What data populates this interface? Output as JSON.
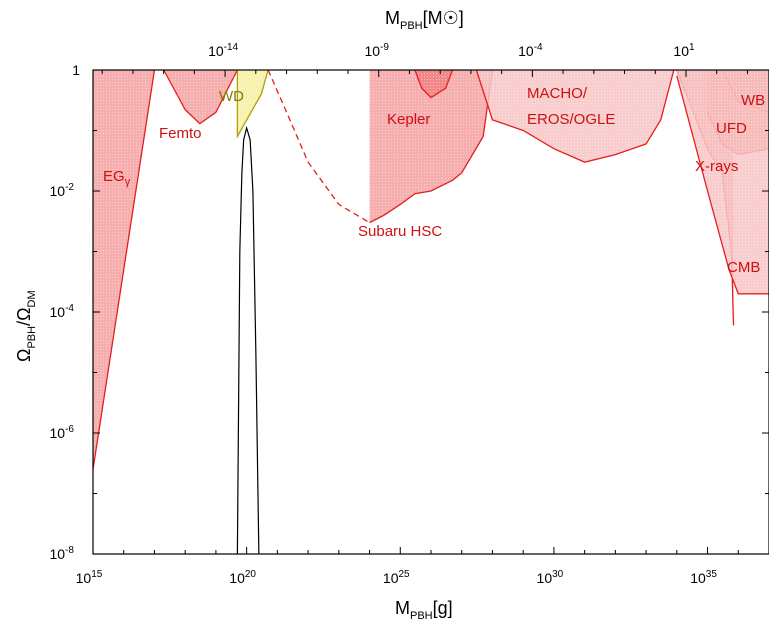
{
  "chart_data": {
    "type": "area",
    "x_axis": {
      "label": "M",
      "label_sub": "PBH",
      "label_suffix": "[g]",
      "scale": "log",
      "range": [
        1000000000000000.0,
        1e+37
      ],
      "tick_labels": [
        {
          "value": 1000000000000000.0,
          "base": "10",
          "exp": "15"
        },
        {
          "value": 1e+20,
          "base": "10",
          "exp": "20"
        },
        {
          "value": 1e+25,
          "base": "10",
          "exp": "25"
        },
        {
          "value": 1e+30,
          "base": "10",
          "exp": "30"
        },
        {
          "value": 1e+35,
          "base": "10",
          "exp": "35"
        }
      ]
    },
    "top_axis": {
      "label": "M",
      "label_sub": "PBH",
      "label_suffix": "[M",
      "label_sun": "☉",
      "label_close": "]",
      "tick_labels": [
        {
          "value": 1e-14,
          "base": "10",
          "exp": "-14"
        },
        {
          "value": 1e-09,
          "base": "10",
          "exp": "-9"
        },
        {
          "value": 0.0001,
          "base": "10",
          "exp": "-4"
        },
        {
          "value": 10,
          "base": "10",
          "exp": "1"
        }
      ]
    },
    "y_axis": {
      "label": "Ω",
      "label_sub": "PBH",
      "label_mid": "/Ω",
      "label_sub2": "DM",
      "scale": "log",
      "range": [
        1e-08,
        1
      ],
      "tick_labels": [
        {
          "value": 1,
          "text": "1",
          "base": "10",
          "exp": "0"
        },
        {
          "value": 0.01,
          "base": "10",
          "exp": "-2"
        },
        {
          "value": 0.0001,
          "base": "10",
          "exp": "-4"
        },
        {
          "value": 1e-06,
          "base": "10",
          "exp": "-6"
        },
        {
          "value": 1e-08,
          "base": "10",
          "exp": "-8"
        }
      ]
    },
    "constraints": [
      {
        "name": "EGγ",
        "label": "EG",
        "label_greek": "γ",
        "color": "#f4a0a0",
        "edge": "#e61e1e",
        "boundary": [
          [
            1000000000000000.0,
            2.5e-07
          ],
          [
            1e+17,
            1
          ]
        ]
      },
      {
        "name": "Femto",
        "label": "Femto",
        "color": "#f4a0a0",
        "edge": "#e61e1e",
        "boundary": [
          [
            2e+17,
            1
          ],
          [
            1e+18,
            0.22
          ],
          [
            3e+18,
            0.13
          ],
          [
            1e+19,
            0.2
          ],
          [
            5e+19,
            1
          ]
        ]
      },
      {
        "name": "WD",
        "label": "WD",
        "color": "#f6f0a0",
        "edge": "#b0a000",
        "boundary": [
          [
            5e+19,
            1
          ],
          [
            5e+19,
            0.08
          ],
          [
            3e+20,
            0.4
          ],
          [
            5e+20,
            1
          ]
        ]
      },
      {
        "name": "Subaru HSC",
        "label": "Subaru HSC",
        "color": "#f4a0a0",
        "edge": "#e61e1e",
        "boundary": [
          [
            1e+24,
            0.003
          ],
          [
            3e+24,
            0.004
          ],
          [
            1e+25,
            0.006
          ],
          [
            3e+25,
            0.009
          ],
          [
            1e+26,
            0.01
          ],
          [
            5e+26,
            0.015
          ],
          [
            1e+27,
            0.02
          ],
          [
            5e+27,
            0.08
          ],
          [
            1e+28,
            1
          ]
        ]
      },
      {
        "name": "Subaru HSC (extrapolated)",
        "label": "",
        "color": "none",
        "edge": "#e61e1e",
        "dashed": true,
        "boundary": [
          [
            5e+20,
            1
          ],
          [
            2e+21,
            0.2
          ],
          [
            1e+22,
            0.03
          ],
          [
            1e+23,
            0.006
          ],
          [
            1e+24,
            0.003
          ]
        ]
      },
      {
        "name": "Kepler",
        "label": "Kepler",
        "color": "#f08080",
        "edge": "#e61e1e",
        "boundary": [
          [
            3e+25,
            1
          ],
          [
            5e+25,
            0.5
          ],
          [
            1e+26,
            0.35
          ],
          [
            3e+26,
            0.5
          ],
          [
            5e+26,
            1
          ]
        ]
      },
      {
        "name": "MACHO/EROS/OGLE",
        "label": "MACHO/",
        "label2": "EROS/OGLE",
        "color": "#f8c4c4",
        "edge": "#e61e1e",
        "boundary": [
          [
            3e+27,
            1
          ],
          [
            1e+28,
            0.15
          ],
          [
            1e+29,
            0.1
          ],
          [
            1e+30,
            0.05
          ],
          [
            1e+31,
            0.03
          ],
          [
            1e+32,
            0.04
          ],
          [
            1e+33,
            0.06
          ],
          [
            3e+33,
            0.15
          ],
          [
            8e+33,
            1
          ]
        ]
      },
      {
        "name": "X-rays",
        "label": "X-rays",
        "color": "#f4a0a0",
        "edge": "#e61e1e",
        "boundary": [
          [
            1e+34,
            1
          ],
          [
            1e+35,
            0.05
          ],
          [
            3e+35,
            0.02
          ],
          [
            6e+35,
            0.001
          ],
          [
            7e+35,
            6e-05
          ]
        ]
      },
      {
        "name": "UFD",
        "label": "UFD",
        "color": "#f08080",
        "edge": "#e61e1e",
        "boundary": [
          [
            1e+35,
            0.2
          ],
          [
            3e+35,
            0.06
          ],
          [
            1e+36,
            0.04
          ],
          [
            1e+37,
            0.05
          ]
        ]
      },
      {
        "name": "WB",
        "label": "WB",
        "color": "#f08080",
        "edge": "#e61e1e",
        "boundary": [
          [
            3e+35,
            1
          ],
          [
            1e+36,
            0.3
          ],
          [
            1e+37,
            0.2
          ]
        ]
      },
      {
        "name": "CMB",
        "label": "CMB",
        "color": "#f8c4c4",
        "edge": "#e61e1e",
        "boundary": [
          [
            1e+34,
            0.8
          ],
          [
            1e+35,
            0.01
          ],
          [
            5e+35,
            0.0005
          ],
          [
            1e+36,
            0.0002
          ],
          [
            1e+37,
            0.0002
          ]
        ]
      }
    ],
    "mass_function": {
      "name": "PBH mass function",
      "color": "#000000",
      "peak_x": 1e+20,
      "peak_y": 0.11,
      "points": [
        [
          5e+19,
          1e-08
        ],
        [
          6e+19,
          0.001
        ],
        [
          7e+19,
          0.02
        ],
        [
          8e+19,
          0.07
        ],
        [
          1e+20,
          0.11
        ],
        [
          1.3e+20,
          0.07
        ],
        [
          1.6e+20,
          0.01
        ],
        [
          2e+20,
          2e-05
        ],
        [
          2.5e+20,
          1e-08
        ]
      ]
    }
  }
}
